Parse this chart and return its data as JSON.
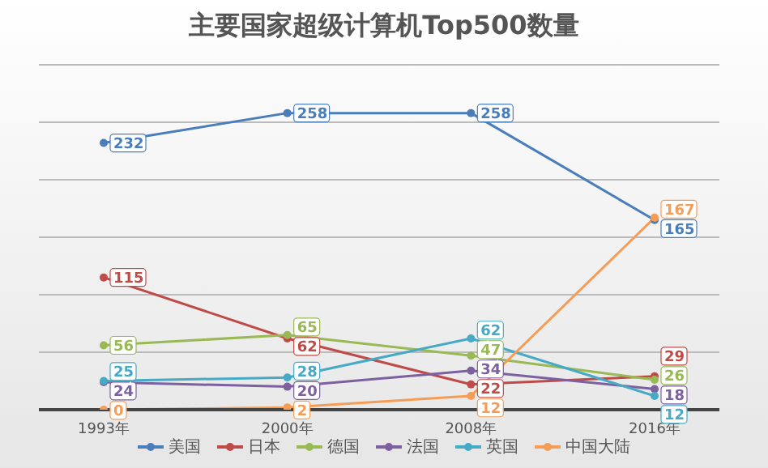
{
  "chart_data": {
    "type": "line",
    "title": "主要国家超级计算机Top500数量",
    "categories": [
      "1993年",
      "2000年",
      "2008年",
      "2016年"
    ],
    "series": [
      {
        "name": "美国",
        "color": "#4a7ebb",
        "values": [
          232,
          258,
          258,
          165
        ]
      },
      {
        "name": "日本",
        "color": "#be4b48",
        "values": [
          115,
          62,
          22,
          29
        ]
      },
      {
        "name": "德国",
        "color": "#98b954",
        "values": [
          56,
          65,
          47,
          26
        ]
      },
      {
        "name": "法国",
        "color": "#7d60a0",
        "values": [
          24,
          20,
          34,
          18
        ]
      },
      {
        "name": "英国",
        "color": "#46aac5",
        "values": [
          25,
          28,
          62,
          12
        ]
      },
      {
        "name": "中国大陆",
        "color": "#f59d56",
        "values": [
          0,
          2,
          12,
          167
        ]
      }
    ],
    "ylim": [
      0,
      300
    ],
    "yticks": [
      {
        "value": 0,
        "label": null
      },
      {
        "value": 50,
        "label": null
      },
      {
        "value": 100,
        "label": null
      },
      {
        "value": 150,
        "label": null
      },
      {
        "value": 200,
        "label": null
      },
      {
        "value": 250,
        "label": null
      },
      {
        "value": 300,
        "label": null
      }
    ],
    "tick_labels": "x",
    "grid": "y",
    "legend": "bottom",
    "marker": "circle",
    "line_style": "solid",
    "data_labels": true
  }
}
